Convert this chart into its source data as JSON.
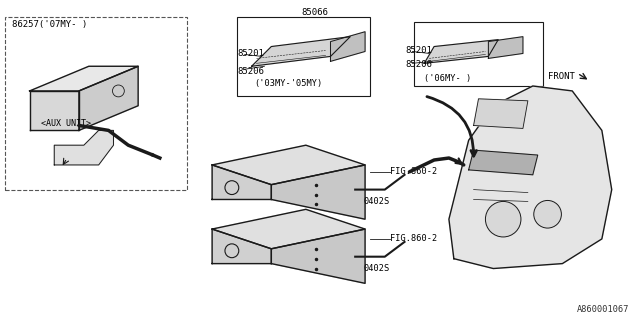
{
  "title": "",
  "bg_color": "#ffffff",
  "line_color": "#000000",
  "part_numbers": {
    "aux_unit_label": "86257('07MY- )",
    "aux_unit_name": "<AUX UNIT>",
    "p85066": "85066",
    "p85201_left": "85201",
    "p85206_left": "85206",
    "p85201_right": "85201",
    "p85206_right": "85206",
    "year_left": "('03MY-'05MY)",
    "year_right": "('06MY- )",
    "fig1": "FIG.860-2",
    "fig2": "FIG.860-2",
    "q1": "0402S",
    "q2": "0402S",
    "front": "FRONT",
    "ref": "A860001067"
  },
  "colors": {
    "outline": "#1a1a1a",
    "fill_box": "#f5f5f5",
    "border": "#333333",
    "arrow": "#000000",
    "text": "#000000",
    "dash": "#555555"
  }
}
